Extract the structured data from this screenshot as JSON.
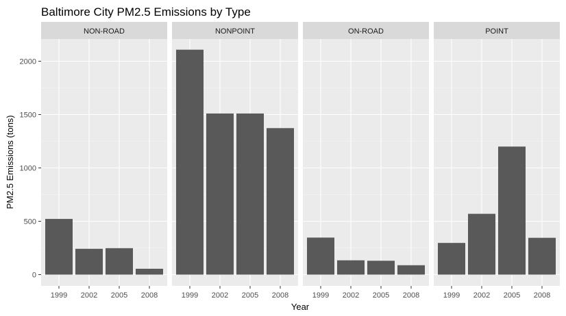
{
  "chart_data": {
    "type": "bar",
    "title": "Baltimore City PM2.5 Emissions by Type",
    "xlabel": "Year",
    "ylabel": "PM2.5 Emissions (tons)",
    "ylim": [
      0,
      2200
    ],
    "yticks": [
      0,
      500,
      1000,
      1500,
      2000
    ],
    "categories": [
      "1999",
      "2002",
      "2005",
      "2008"
    ],
    "grid": true,
    "bar_color": "#595959",
    "panel_bg": "#ebebeb",
    "strip_bg": "#d9d9d9",
    "facets": [
      {
        "name": "NON-ROAD",
        "values": [
          522,
          242,
          248,
          55
        ]
      },
      {
        "name": "NONPOINT",
        "values": [
          2108,
          1510,
          1510,
          1373
        ]
      },
      {
        "name": "ON-ROAD",
        "values": [
          347,
          134,
          130,
          88
        ]
      },
      {
        "name": "POINT",
        "values": [
          297,
          570,
          1200,
          345
        ]
      }
    ]
  }
}
